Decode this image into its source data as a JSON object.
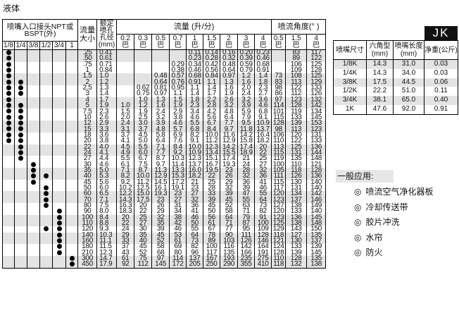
{
  "title": "液体",
  "table": {
    "inlet_header": "喷嘴入口接头NPT或BSPT(外)",
    "size_header": "流量大小",
    "orifice_header": "额定喷孔孔径(mm)",
    "flow_header": "流量 (升/分)",
    "angle_header": "喷流角度(° )",
    "pipe_sizes": [
      "1/8",
      "1/4",
      "3/8",
      "1/2",
      "3/4",
      "1"
    ],
    "flow_pressures": [
      "0.2",
      "0.3",
      "0.5",
      "0.7",
      "1",
      "1.5",
      "2",
      "3",
      "4"
    ],
    "angle_pressures": [
      "0.5",
      "1.5",
      "4"
    ],
    "pressure_unit": "巴",
    "rows": [
      {
        "dots": [
          "1/8"
        ],
        "size": ".25",
        "orifice": "0.41",
        "flow": [
          "",
          "",
          "",
          "",
          "0.11",
          "0.14",
          "0.16",
          "0.20",
          "0.23"
        ],
        "angle": [
          "",
          "83",
          "117"
        ]
      },
      {
        "dots": [
          "1/8"
        ],
        "size": ".50",
        "orifice": "0.61",
        "flow": [
          "",
          "",
          "",
          "",
          "0.23",
          "0.28",
          "0.32",
          "0.39",
          "0.46"
        ],
        "angle": [
          "",
          "89",
          "122"
        ]
      },
      {
        "dots": [
          "1/8"
        ],
        "size": ".75",
        "orifice": "0.71",
        "flow": [
          "",
          "",
          "",
          "0.29",
          "0.34",
          "0.42",
          "0.48",
          "0.59",
          "0.68"
        ],
        "angle": [
          "",
          "106",
          "125"
        ]
      },
      {
        "dots": [
          "1/8"
        ],
        "size": "1",
        "orifice": "0.84",
        "flow": [
          "",
          "",
          "",
          "0.38",
          "0.46",
          "0.56",
          "0.64",
          "0.79",
          "0.91"
        ],
        "angle": [
          "",
          "109",
          "128"
        ]
      },
      {
        "dots": [
          "1/8"
        ],
        "size": "1.5",
        "orifice": "1.0",
        "flow": [
          "",
          "",
          "0.48",
          "0.57",
          "0.68",
          "0.84",
          "0.97",
          "1.2",
          "1.4"
        ],
        "angle": [
          "73",
          "108",
          "125"
        ]
      },
      {
        "dots": [
          "1/8",
          "1/4"
        ],
        "size": "2",
        "orifice": "1.2",
        "flow": [
          "",
          "",
          "0.64",
          "0.76",
          "0.91",
          "1.1",
          "1.3",
          "1.6",
          "1.8"
        ],
        "angle": [
          "83",
          "113",
          "129"
        ]
      },
      {
        "dots": [
          "1/8",
          "1/4"
        ],
        "size": "2.5",
        "orifice": "1.3",
        "flow": [
          "",
          "0.62",
          "0.81",
          "0.95",
          "1.1",
          "1.4",
          "1.6",
          "2.0",
          "2.3"
        ],
        "angle": [
          "98",
          "122",
          "133"
        ]
      },
      {
        "dots": [
          "1/8",
          "1/4"
        ],
        "size": "3",
        "orifice": "1.4",
        "flow": [
          "",
          "0.75",
          "0.97",
          "1.1",
          "1.4",
          "1.7",
          "1.9",
          "2.4",
          "2.7"
        ],
        "angle": [
          "86",
          "112",
          "126"
        ]
      },
      {
        "dots": [
          "1/8"
        ],
        "size": "4",
        "orifice": "1.7",
        "flow": [
          "",
          "1.0",
          "1.3",
          "1.5",
          "1.8",
          "2.2",
          "2.6",
          "3.2",
          "3.6"
        ],
        "angle": [
          "97",
          "123",
          "132"
        ]
      },
      {
        "dots": [
          "1/8",
          "1/4"
        ],
        "size": "5",
        "orifice": "1.9",
        "flow": [
          "1.0",
          "1.2",
          "1.6",
          "1.9",
          "2.3",
          "2.8",
          "3.2",
          "3.9",
          "4.6"
        ],
        "angle": [
          "114",
          "128",
          "142"
        ]
      },
      {
        "dots": [
          "1/8",
          "1/4"
        ],
        "size": "7.5",
        "orifice": "2.3",
        "flow": [
          "1.5",
          "1.9",
          "2.4",
          "2.9",
          "3.4",
          "4.2",
          "4.8",
          "5.9",
          "6.8"
        ],
        "angle": [
          "101",
          "119",
          "134"
        ]
      },
      {
        "dots": [
          "1/8",
          "1/4"
        ],
        "size": "10",
        "orifice": "2.6",
        "flow": [
          "2.0",
          "2.5",
          "3.2",
          "3.8",
          "4.6",
          "5.6",
          "6.4",
          "7.9",
          "9.1"
        ],
        "angle": [
          "115",
          "133",
          "145"
        ]
      },
      {
        "dots": [
          "1/8",
          "1/4"
        ],
        "size": "12",
        "orifice": "2.9",
        "flow": [
          "2.4",
          "3.0",
          "3.9",
          "4.6",
          "5.5",
          "6.7",
          "7.7",
          "9.5",
          "10.9"
        ],
        "angle": [
          "128",
          "139",
          "153"
        ]
      },
      {
        "dots": [
          "1/8",
          "1/4"
        ],
        "size": "15",
        "orifice": "3.3",
        "flow": [
          "3.1",
          "3.7",
          "4.8",
          "5.7",
          "6.8",
          "8.4",
          "9.7",
          "11.8",
          "13.7"
        ],
        "angle": [
          "98",
          "113",
          "123"
        ]
      },
      {
        "dots": [
          "1/8",
          "1/4"
        ],
        "size": "18",
        "orifice": "3.6",
        "flow": [
          "3.7",
          "4.5",
          "5.8",
          "6.9",
          "8.2",
          "10.0",
          "11.6",
          "14.2",
          "16.4"
        ],
        "angle": [
          "106",
          "120",
          "131"
        ]
      },
      {
        "dots": [
          "1/8",
          "1/4"
        ],
        "size": "20",
        "orifice": "3.8",
        "flow": [
          "4.1",
          "5.0",
          "6.4",
          "7.6",
          "9.1",
          "11.2",
          "12.9",
          "15.8",
          "18.2"
        ],
        "angle": [
          "110",
          "122",
          "133"
        ]
      },
      {
        "dots": [
          "1/4"
        ],
        "size": "22",
        "orifice": "4.0",
        "flow": [
          "4.5",
          "5.5",
          "7.1",
          "8.4",
          "10.0",
          "12.3",
          "14.2",
          "17.4",
          "20"
        ],
        "angle": [
          "113",
          "125",
          "136"
        ]
      },
      {
        "dots": [
          "1/4"
        ],
        "size": "24",
        "orifice": "4.1",
        "flow": [
          "4.9",
          "6.0",
          "7.7",
          "9.2",
          "10.9",
          "13.4",
          "15.5",
          "18.9",
          "22"
        ],
        "angle": [
          "115",
          "131",
          "144"
        ]
      },
      {
        "dots": [
          "1/4"
        ],
        "size": "27",
        "orifice": "4.4",
        "flow": [
          "5.5",
          "6.7",
          "8.7",
          "10.3",
          "12.3",
          "15.1",
          "17.4",
          "21",
          "25"
        ],
        "angle": [
          "119",
          "135",
          "148"
        ]
      },
      {
        "dots": [
          "3/8"
        ],
        "size": "30",
        "orifice": "4.6",
        "flow": [
          "6.1",
          "7.5",
          "9.7",
          "11.4",
          "13.7",
          "16.7",
          "19.3",
          "24",
          "27"
        ],
        "angle": [
          "100",
          "110",
          "121"
        ]
      },
      {
        "dots": [
          "3/8"
        ],
        "size": "35",
        "orifice": "5.0",
        "flow": [
          "7.1",
          "8.7",
          "11.3",
          "13.3",
          "16.0",
          "19.5",
          "23",
          "28",
          "32"
        ],
        "angle": [
          "105",
          "118",
          "128"
        ]
      },
      {
        "dots": [
          "3/8",
          "1/2"
        ],
        "size": "40",
        "orifice": "5.3",
        "flow": [
          "8.2",
          "10.0",
          "12.9",
          "15.3",
          "18.2",
          "22",
          "26",
          "32",
          "36"
        ],
        "angle": [
          "111",
          "126",
          "136"
        ]
      },
      {
        "dots": [
          "3/8"
        ],
        "size": "45",
        "orifice": "5.6",
        "flow": [
          "9.2",
          "11.2",
          "14.5",
          "17.2",
          "21",
          "25",
          "29",
          "36",
          "41"
        ],
        "angle": [
          "115",
          "130",
          "140"
        ]
      },
      {
        "dots": [
          "1/2"
        ],
        "size": "50",
        "orifice": "6.0",
        "flow": [
          "10.2",
          "12.5",
          "16.1",
          "19.1",
          "23",
          "28",
          "32",
          "39",
          "46"
        ],
        "angle": [
          "117",
          "131",
          "140"
        ]
      },
      {
        "dots": [
          "1/2"
        ],
        "size": "60",
        "orifice": "6.5",
        "flow": [
          "12.2",
          "15.0",
          "19.3",
          "23",
          "27",
          "33",
          "39",
          "47",
          "55"
        ],
        "angle": [
          "120",
          "134",
          "142"
        ]
      },
      {
        "dots": [
          "1/2"
        ],
        "size": "70",
        "orifice": "7.1",
        "flow": [
          "14.3",
          "17.5",
          "23",
          "27",
          "32",
          "39",
          "45",
          "55",
          "64"
        ],
        "angle": [
          "123",
          "137",
          "146"
        ]
      },
      {
        "dots": [
          "1/2"
        ],
        "size": "80",
        "orifice": "7.5",
        "flow": [
          "16.3",
          "20",
          "26",
          "31",
          "36",
          "45",
          "52",
          "63",
          "73"
        ],
        "angle": [
          "127",
          "138",
          "149"
        ]
      },
      {
        "dots": [
          "3/4"
        ],
        "size": "90",
        "orifice": "8.0",
        "flow": [
          "18.3",
          "22",
          "29",
          "34",
          "41",
          "50",
          "58",
          "71",
          "82"
        ],
        "angle": [
          "120",
          "133",
          "140"
        ]
      },
      {
        "dots": [
          "3/4"
        ],
        "size": "100",
        "orifice": "8.4",
        "flow": [
          "20",
          "25",
          "32",
          "38",
          "46",
          "56",
          "64",
          "79",
          "91"
        ],
        "angle": [
          "123",
          "136",
          "145"
        ]
      },
      {
        "dots": [
          "3/4"
        ],
        "size": "110",
        "orifice": "8.8",
        "flow": [
          "22",
          "27",
          "35",
          "42",
          "50",
          "61",
          "71",
          "87",
          "100"
        ],
        "angle": [
          "125",
          "138",
          "148"
        ]
      },
      {
        "dots": [
          "1/2",
          "3/4"
        ],
        "size": "120",
        "orifice": "9.3",
        "flow": [
          "24",
          "30",
          "39",
          "46",
          "55",
          "67",
          "77",
          "95",
          "109"
        ],
        "angle": [
          "129",
          "143",
          "150"
        ]
      },
      {
        "dots": [
          "3/4"
        ],
        "size": "140",
        "orifice": "10.3",
        "flow": [
          "29",
          "35",
          "45",
          "53",
          "64",
          "78",
          "90",
          "111",
          "128"
        ],
        "angle": [
          "118",
          "127",
          "135"
        ]
      },
      {
        "dots": [
          "3/4"
        ],
        "size": "160",
        "orifice": "11.1",
        "flow": [
          "33",
          "40",
          "52",
          "61",
          "73",
          "89",
          "103",
          "126",
          "146"
        ],
        "angle": [
          "121",
          "130",
          "137"
        ]
      },
      {
        "dots": [
          "3/4"
        ],
        "size": "180",
        "orifice": "11.5",
        "flow": [
          "37",
          "45",
          "58",
          "69",
          "82",
          "100",
          "116",
          "142",
          "164"
        ],
        "angle": [
          "124",
          "133",
          "139"
        ]
      },
      {
        "dots": [
          "3/4"
        ],
        "size": "210",
        "orifice": "12.3",
        "flow": [
          "43",
          "52",
          "68",
          "80",
          "96",
          "117",
          "135",
          "166",
          "191"
        ],
        "angle": [
          "128",
          "139",
          "145"
        ]
      },
      {
        "dots": [
          "1"
        ],
        "size": "300",
        "orifice": "14.7",
        "flow": [
          "61",
          "75",
          "97",
          "114",
          "137",
          "167",
          "193",
          "235",
          "275"
        ],
        "angle": [
          "110",
          "128",
          "135"
        ]
      },
      {
        "dots": [
          "1"
        ],
        "size": "450",
        "orifice": "17.9",
        "flow": [
          "92",
          "112",
          "145",
          "172",
          "205",
          "250",
          "290",
          "355",
          "410"
        ],
        "angle": [
          "118",
          "132",
          "138"
        ]
      }
    ]
  },
  "spec": {
    "series_label": "JK",
    "headers": [
      "喷嘴尺寸",
      "六角型(mm)",
      "喷嘴长度(mm)",
      "净重(公斤)"
    ],
    "rows": [
      [
        "1/8K",
        "14.3",
        "31.0",
        "0.03"
      ],
      [
        "1/4K",
        "14.3",
        "34.0",
        "0.03"
      ],
      [
        "3/8K",
        "17.5",
        "44.5",
        "0.06"
      ],
      [
        "1/2K",
        "22.2",
        "51.0",
        "0.11"
      ],
      [
        "3/4K",
        "38.1",
        "65.0",
        "0.40"
      ],
      [
        "1K",
        "47.6",
        "92.0",
        "0.91"
      ]
    ]
  },
  "applications": {
    "title": "一般应用:",
    "bullet": "◎",
    "items": [
      "喷流空气净化器板",
      "冷却传送带",
      "胶片冲洗",
      "水帘",
      "防火"
    ]
  }
}
